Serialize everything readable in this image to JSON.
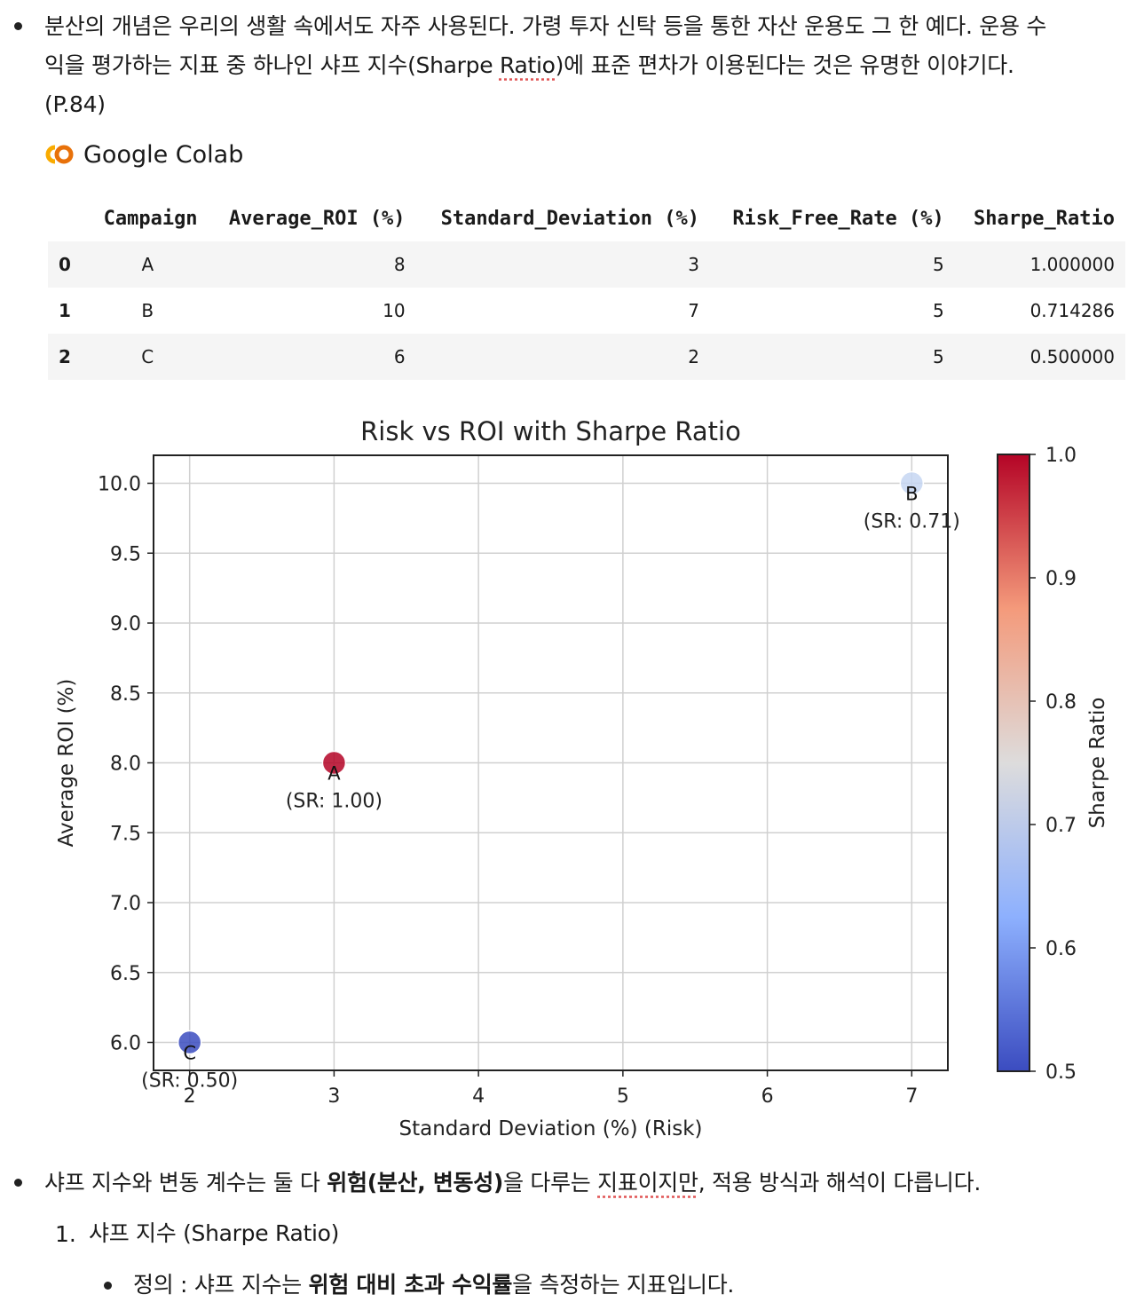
{
  "bullet1": {
    "line1": "분산의 개념은 우리의 생활 속에서도 자주 사용된다. 가령 투자 신탁 등을 통한 자산 운용도 그 한 예다. 운용 수",
    "line2_a": "익을 평가하는 지표 중 하나인 샤프 지수(Sharpe ",
    "line2_b": "Ratio",
    "line2_c": ")에 표준 편차가 이용된다는 것은 유명한 이야기다.",
    "line3": "(P.84)"
  },
  "colab": {
    "label": "Google Colab",
    "icon": "colab-logo-icon",
    "color": "#F9AB00"
  },
  "table": {
    "headers": [
      "",
      "Campaign",
      "Average_ROI (%)",
      "Standard_Deviation (%)",
      "Risk_Free_Rate (%)",
      "Sharpe_Ratio"
    ],
    "rows": [
      [
        "0",
        "A",
        "8",
        "3",
        "5",
        "1.000000"
      ],
      [
        "1",
        "B",
        "10",
        "7",
        "5",
        "0.714286"
      ],
      [
        "2",
        "C",
        "6",
        "2",
        "5",
        "0.500000"
      ]
    ]
  },
  "chart_data": {
    "type": "scatter",
    "title": "Risk vs ROI with Sharpe Ratio",
    "xlabel": "Standard Deviation (%) (Risk)",
    "ylabel": "Average ROI (%)",
    "xlim": [
      1.75,
      7.25
    ],
    "ylim": [
      5.8,
      10.2
    ],
    "xticks": [
      "2",
      "3",
      "4",
      "5",
      "6",
      "7"
    ],
    "yticks": [
      "6.0",
      "6.5",
      "7.0",
      "7.5",
      "8.0",
      "8.5",
      "9.0",
      "9.5",
      "10.0"
    ],
    "grid": true,
    "points": [
      {
        "label": "A",
        "x": 3,
        "y": 8,
        "sharpe": 1.0,
        "annotation": "(SR: 1.00)",
        "color": "#b40426"
      },
      {
        "label": "B",
        "x": 7,
        "y": 10,
        "sharpe": 0.714286,
        "annotation": "(SR: 0.71)",
        "color": "#c5d6f2"
      },
      {
        "label": "C",
        "x": 2,
        "y": 6,
        "sharpe": 0.5,
        "annotation": "(SR: 0.50)",
        "color": "#3b4cc0"
      }
    ],
    "colorbar": {
      "label": "Sharpe Ratio",
      "range": [
        0.5,
        1.0
      ],
      "ticks": [
        "0.5",
        "0.6",
        "0.7",
        "0.8",
        "0.9",
        "1.0"
      ],
      "colormap": "coolwarm"
    }
  },
  "bullet2": {
    "t1": "샤프 지수와 변동 계수는 둘 다 ",
    "t2": "위험(분산, 변동성)",
    "t3": "을 다루는 ",
    "t4": "지표이지만",
    "t5": ", 적용 방식과 해석이 다릅니다."
  },
  "list1": {
    "num": "1.",
    "text": "샤프 지수 (Sharpe Ratio)"
  },
  "sub1": {
    "t1": "정의 : 샤프 지수는 ",
    "t2": "위험 대비 초과 수익률",
    "t3": "을 측정하는 지표입니다."
  }
}
